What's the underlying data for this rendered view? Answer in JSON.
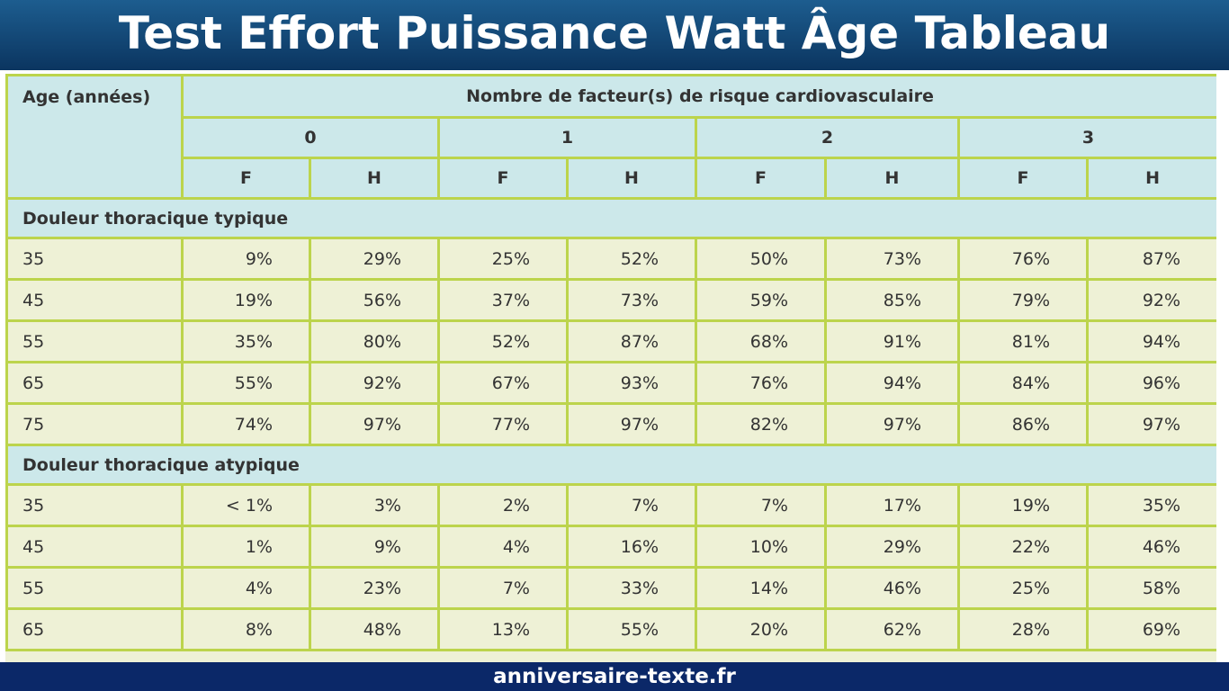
{
  "header": {
    "title": "Test Effort Puissance Watt Âge Tableau"
  },
  "table": {
    "age_label": "Age (années)",
    "risk_label": "Nombre de facteur(s) de risque cardiovasculaire",
    "risk_counts": [
      "0",
      "1",
      "2",
      "3"
    ],
    "sexes": [
      "F",
      "H",
      "F",
      "H",
      "F",
      "H",
      "F",
      "H"
    ],
    "sections": [
      {
        "title": "Douleur thoracique typique",
        "rows": [
          {
            "age": "35",
            "values": [
              "9%",
              "29%",
              "25%",
              "52%",
              "50%",
              "73%",
              "76%",
              "87%"
            ]
          },
          {
            "age": "45",
            "values": [
              "19%",
              "56%",
              "37%",
              "73%",
              "59%",
              "85%",
              "79%",
              "92%"
            ]
          },
          {
            "age": "55",
            "values": [
              "35%",
              "80%",
              "52%",
              "87%",
              "68%",
              "91%",
              "81%",
              "94%"
            ]
          },
          {
            "age": "65",
            "values": [
              "55%",
              "92%",
              "67%",
              "93%",
              "76%",
              "94%",
              "84%",
              "96%"
            ]
          },
          {
            "age": "75",
            "values": [
              "74%",
              "97%",
              "77%",
              "97%",
              "82%",
              "97%",
              "86%",
              "97%"
            ]
          }
        ]
      },
      {
        "title": "Douleur thoracique atypique",
        "rows": [
          {
            "age": "35",
            "values": [
              "< 1%",
              "3%",
              "2%",
              "7%",
              "7%",
              "17%",
              "19%",
              "35%"
            ]
          },
          {
            "age": "45",
            "values": [
              "1%",
              "9%",
              "4%",
              "16%",
              "10%",
              "29%",
              "22%",
              "46%"
            ]
          },
          {
            "age": "55",
            "values": [
              "4%",
              "23%",
              "7%",
              "33%",
              "14%",
              "46%",
              "25%",
              "58%"
            ]
          },
          {
            "age": "65",
            "values": [
              "8%",
              "48%",
              "13%",
              "55%",
              "20%",
              "62%",
              "28%",
              "69%"
            ]
          }
        ]
      }
    ]
  },
  "footer": {
    "site": "anniversaire-texte.fr"
  }
}
